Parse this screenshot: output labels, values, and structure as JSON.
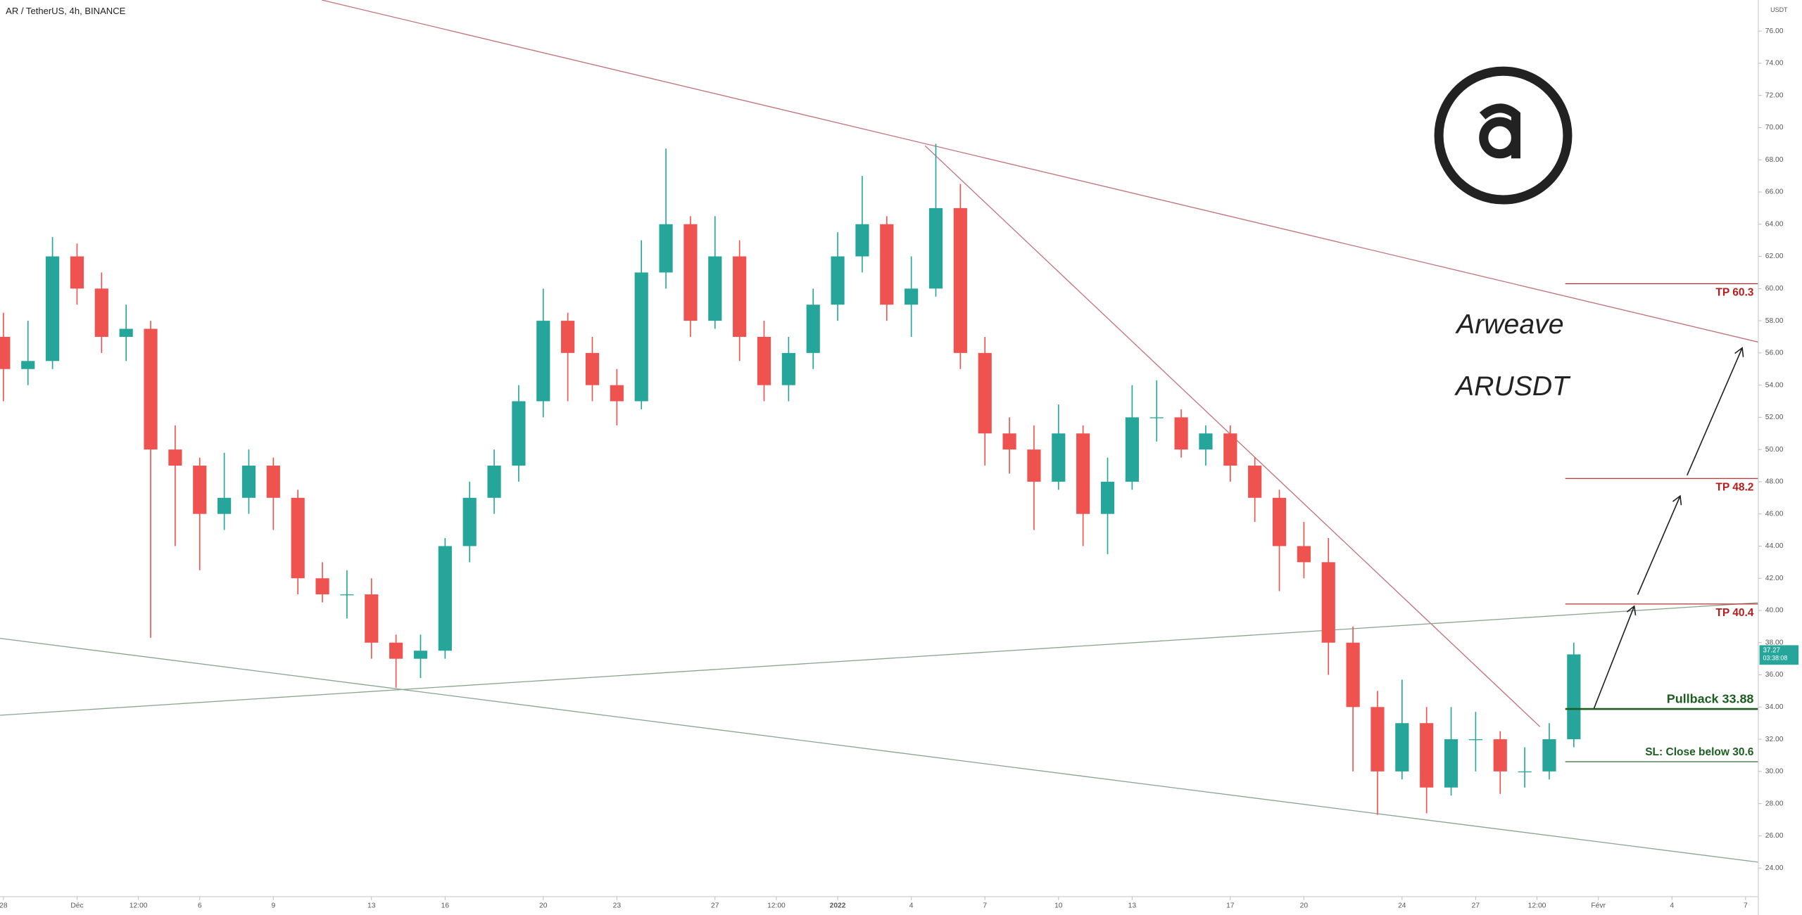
{
  "chart_data": {
    "type": "candlestick",
    "title": "AR / TetherUS, 4h, BINANCE",
    "currency": "USDT",
    "x": [
      0,
      1,
      2,
      3,
      4,
      5,
      6,
      7,
      8,
      9,
      10,
      11,
      12,
      13,
      14,
      15,
      16,
      17,
      18,
      19,
      20,
      21,
      22,
      23,
      24,
      25,
      26,
      27,
      28,
      29,
      30,
      31,
      32,
      33,
      34,
      35,
      36,
      37,
      38,
      39,
      40,
      41,
      42,
      43,
      44,
      45,
      46,
      47,
      48,
      49,
      50,
      51,
      52,
      53,
      54,
      55,
      56,
      57,
      58,
      59,
      60,
      61,
      62,
      63,
      64
    ],
    "open": [
      57,
      55,
      55.5,
      62,
      60,
      57,
      57.5,
      50,
      49,
      46,
      47,
      49,
      47,
      42,
      41,
      41,
      38,
      37,
      37.5,
      44,
      47,
      49,
      53,
      58,
      56,
      54,
      53,
      61,
      64,
      58,
      62,
      57,
      54,
      56,
      59,
      62,
      64,
      59,
      60,
      65,
      56,
      51,
      50,
      48,
      51,
      46,
      48,
      52,
      52,
      50,
      51,
      49,
      47,
      44,
      43,
      38,
      34,
      30,
      33,
      29,
      32,
      32,
      30,
      30,
      32
    ],
    "high": [
      58.5,
      58,
      63.2,
      62.8,
      61,
      59,
      58,
      51.5,
      49.5,
      49.8,
      50,
      49.5,
      47.5,
      43,
      42.5,
      42,
      38.5,
      38.5,
      44.5,
      48,
      50,
      54,
      60,
      58.5,
      57,
      55,
      63,
      68.7,
      64.5,
      64.5,
      63,
      58,
      57,
      60,
      63.5,
      67,
      64.5,
      62,
      69,
      66.5,
      57,
      52,
      51.5,
      52.8,
      51.5,
      49.5,
      54,
      54.3,
      52.5,
      51.5,
      51.5,
      49.5,
      47.5,
      45.5,
      44.5,
      39,
      35,
      35.7,
      34,
      34,
      33.7,
      32.5,
      31.5,
      33,
      38
    ],
    "low": [
      53,
      54,
      55,
      59,
      56,
      55.5,
      38.3,
      44,
      42.5,
      45,
      46,
      45,
      41,
      40.5,
      39.5,
      37,
      35.2,
      35.8,
      37,
      43,
      46,
      48,
      52,
      53,
      53,
      51.5,
      52.5,
      60,
      57,
      57.5,
      55.5,
      53,
      53,
      55,
      58,
      61,
      58,
      57,
      59.5,
      55,
      49,
      48.5,
      45,
      47.5,
      44,
      43.5,
      47.5,
      50.5,
      49.5,
      49,
      48,
      45.5,
      41.2,
      42,
      36,
      30,
      27.3,
      29.5,
      27.4,
      28.5,
      30,
      28.6,
      29,
      29.5,
      31.5
    ],
    "close": [
      55,
      55.5,
      62,
      60,
      57,
      57.5,
      50,
      49,
      46,
      47,
      49,
      47,
      42,
      41,
      41,
      38,
      37,
      37.5,
      44,
      47,
      49,
      53,
      58,
      56,
      54,
      53,
      61,
      64,
      58,
      62,
      57,
      54,
      56,
      59,
      62,
      64,
      59,
      60,
      65,
      56,
      51,
      50,
      48,
      51,
      46,
      48,
      52,
      52,
      50,
      51,
      49,
      47,
      44,
      43,
      38,
      34,
      30,
      33,
      29,
      32,
      32,
      30,
      30,
      32,
      37.27
    ],
    "up_color": "#26a69a",
    "down_color": "#ef5350",
    "countdown": "03:38:08",
    "xlim": [
      -0.14,
      71.52
    ],
    "ylim": [
      22.22,
      77.93
    ],
    "xticks": [
      {
        "value": 0,
        "label": "28"
      },
      {
        "value": 3,
        "label": "Déc"
      },
      {
        "value": 5.5,
        "label": "12:00"
      },
      {
        "value": 8,
        "label": "6"
      },
      {
        "value": 11,
        "label": "9"
      },
      {
        "value": 15,
        "label": "13"
      },
      {
        "value": 18,
        "label": "16"
      },
      {
        "value": 22,
        "label": "20"
      },
      {
        "value": 25,
        "label": "23"
      },
      {
        "value": 29,
        "label": "27"
      },
      {
        "value": 31.5,
        "label": "12:00"
      },
      {
        "value": 34,
        "label": "2022"
      },
      {
        "value": 37,
        "label": "4"
      },
      {
        "value": 40,
        "label": "7"
      },
      {
        "value": 43,
        "label": "10"
      },
      {
        "value": 46,
        "label": "13"
      },
      {
        "value": 50,
        "label": "17"
      },
      {
        "value": 53,
        "label": "20"
      },
      {
        "value": 57,
        "label": "24"
      },
      {
        "value": 60,
        "label": "27"
      },
      {
        "value": 62.5,
        "label": "12:00"
      },
      {
        "value": 65,
        "label": "Févr"
      },
      {
        "value": 68,
        "label": "4"
      },
      {
        "value": 71,
        "label": "7"
      }
    ],
    "yticks": [
      {
        "value": 24,
        "label": "24.00"
      },
      {
        "value": 26,
        "label": "26.00"
      },
      {
        "value": 28,
        "label": "28.00"
      },
      {
        "value": 30,
        "label": "30.00"
      },
      {
        "value": 32,
        "label": "32.00"
      },
      {
        "value": 34,
        "label": "34.00"
      },
      {
        "value": 36,
        "label": "36.00"
      },
      {
        "value": 38,
        "label": "38.00"
      },
      {
        "value": 40,
        "label": "40.00"
      },
      {
        "value": 42,
        "label": "42.00"
      },
      {
        "value": 44,
        "label": "44.00"
      },
      {
        "value": 46,
        "label": "46.00"
      },
      {
        "value": 48,
        "label": "48.00"
      },
      {
        "value": 50,
        "label": "50.00"
      },
      {
        "value": 52,
        "label": "52.00"
      },
      {
        "value": 54,
        "label": "54.00"
      },
      {
        "value": 56,
        "label": "56.00"
      },
      {
        "value": 58,
        "label": "58.00"
      },
      {
        "value": 60,
        "label": "60.00"
      },
      {
        "value": 62,
        "label": "62.00"
      },
      {
        "value": 64,
        "label": "64.00"
      },
      {
        "value": 66,
        "label": "66.00"
      },
      {
        "value": 68,
        "label": "68.00"
      },
      {
        "value": 70,
        "label": "70.00"
      },
      {
        "value": 72,
        "label": "72.00"
      },
      {
        "value": 74,
        "label": "74.00"
      },
      {
        "value": 76,
        "label": "76.00"
      }
    ],
    "annotations": [
      {
        "label": "TP 60.3",
        "value": 60.3,
        "color": "#b71c1c",
        "side": "below"
      },
      {
        "label": "TP 48.2",
        "value": 48.2,
        "color": "#b71c1c",
        "side": "below"
      },
      {
        "label": "TP 40.4",
        "value": 40.4,
        "color": "#b71c1c",
        "side": "below"
      },
      {
        "label": "Pullback 33.88",
        "value": 33.88,
        "color": "#1b5e20",
        "side": "above"
      },
      {
        "label": "SL: Close below 30.6",
        "value": 30.6,
        "color": "#1b5e20",
        "side": "above"
      }
    ],
    "name": "Arweave",
    "symbol": "ARUSDT"
  }
}
